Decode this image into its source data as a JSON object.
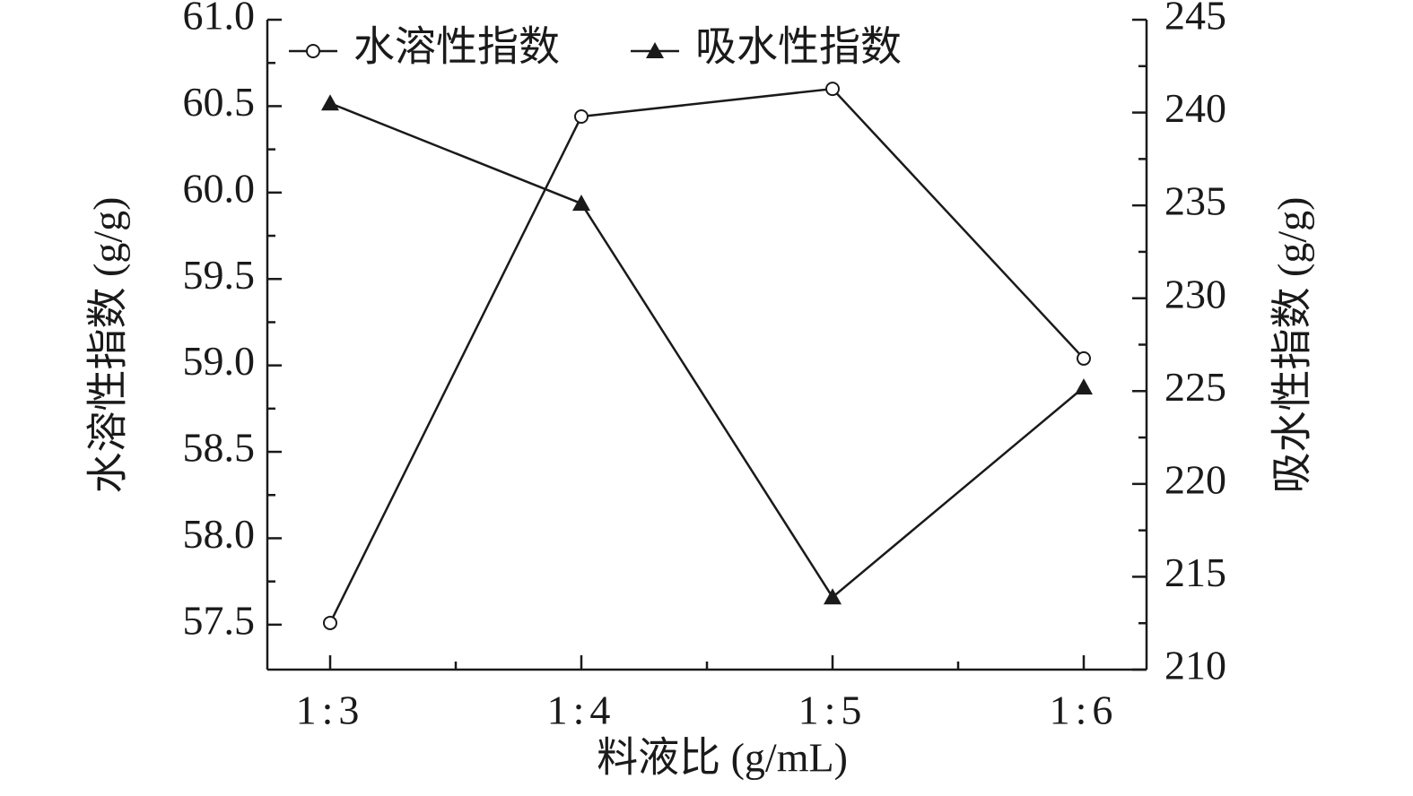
{
  "chart_data": {
    "type": "line",
    "categories": [
      "1:3",
      "1:4",
      "1:5",
      "1:6"
    ],
    "xlabel": "料液比 (g/mL)",
    "ylabel": "水溶性指数 (g/g)",
    "y2label": "吸水性指数 (g/g)",
    "ylim": [
      57.24,
      61.0
    ],
    "yticks": [
      {
        "value": 57.5,
        "label": "57.5"
      },
      {
        "value": 58,
        "label": "58.0"
      },
      58.5,
      {
        "value": 59,
        "label": "59.0"
      },
      59.5,
      {
        "value": 60,
        "label": "60.0"
      },
      60.5,
      {
        "value": 61,
        "label": "61.0"
      }
    ],
    "y2lim": [
      210,
      245
    ],
    "y2ticks": [
      210,
      215,
      220,
      225,
      230,
      235,
      240,
      245
    ],
    "series": [
      {
        "name": "水溶性指数",
        "color": "#1a1a1a",
        "marker": "circle",
        "values": [
          57.51,
          60.44,
          60.6,
          59.04
        ]
      },
      {
        "name": "吸水性指数",
        "color": "#1a1a1a",
        "marker": "triangle",
        "axis": "y2",
        "values": [
          240.5,
          235.1,
          213.9,
          225.2
        ]
      }
    ]
  }
}
